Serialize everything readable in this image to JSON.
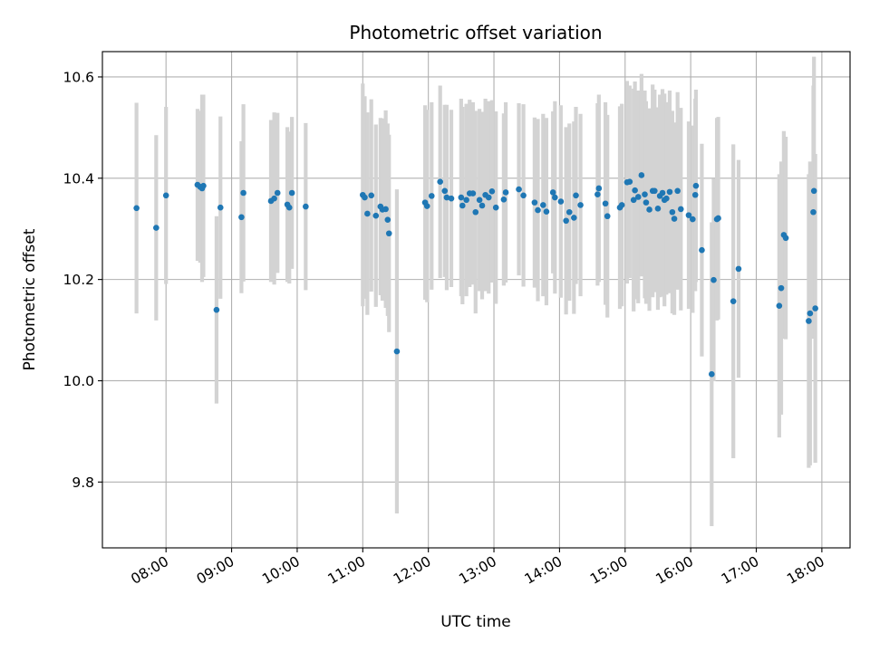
{
  "chart_data": {
    "type": "scatter",
    "title": "Photometric offset variation",
    "xlabel": "UTC time",
    "ylabel": "Photometric offset",
    "x_tick_labels": [
      "08:00",
      "09:00",
      "10:00",
      "11:00",
      "12:00",
      "13:00",
      "14:00",
      "15:00",
      "16:00",
      "17:00",
      "18:00"
    ],
    "x_tick_hours": [
      8,
      9,
      10,
      11,
      12,
      13,
      14,
      15,
      16,
      17,
      18
    ],
    "y_ticks": [
      9.8,
      10.0,
      10.2,
      10.4,
      10.6
    ],
    "y_tick_labels": [
      "9.8",
      "10.0",
      "10.2",
      "10.4",
      "10.6"
    ],
    "xlim_hours": [
      7.03,
      18.43
    ],
    "ylim": [
      9.67,
      10.65
    ],
    "grid": true,
    "colors": {
      "point": "#1f77b4",
      "errorbar": "#d3d3d3",
      "grid": "#b0b0b0"
    },
    "series": [
      {
        "points": [
          [
            7.55,
            10.341,
            0.208
          ],
          [
            7.85,
            10.302,
            0.183
          ],
          [
            8.0,
            10.366,
            0.175
          ],
          [
            8.48,
            10.387,
            0.15
          ],
          [
            8.52,
            10.383,
            0.15
          ],
          [
            8.55,
            10.38,
            0.185
          ],
          [
            8.57,
            10.385,
            0.18
          ],
          [
            8.77,
            10.14,
            0.185
          ],
          [
            8.83,
            10.342,
            0.18
          ],
          [
            9.15,
            10.323,
            0.15
          ],
          [
            9.18,
            10.371,
            0.175
          ],
          [
            9.6,
            10.355,
            0.16
          ],
          [
            9.65,
            10.36,
            0.17
          ],
          [
            9.7,
            10.371,
            0.158
          ],
          [
            9.85,
            10.348,
            0.153
          ],
          [
            9.88,
            10.342,
            0.15
          ],
          [
            9.92,
            10.371,
            0.15
          ],
          [
            10.13,
            10.344,
            0.165
          ],
          [
            11.0,
            10.367,
            0.22
          ],
          [
            11.03,
            10.362,
            0.2
          ],
          [
            11.07,
            10.33,
            0.2
          ],
          [
            11.13,
            10.366,
            0.19
          ],
          [
            11.2,
            10.326,
            0.18
          ],
          [
            11.27,
            10.344,
            0.175
          ],
          [
            11.3,
            10.338,
            0.18
          ],
          [
            11.35,
            10.339,
            0.195
          ],
          [
            11.38,
            10.318,
            0.19
          ],
          [
            11.4,
            10.291,
            0.195
          ],
          [
            11.52,
            10.058,
            0.32
          ],
          [
            11.95,
            10.352,
            0.192
          ],
          [
            11.98,
            10.345,
            0.19
          ],
          [
            12.05,
            10.365,
            0.185
          ],
          [
            12.18,
            10.393,
            0.19
          ],
          [
            12.25,
            10.375,
            0.17
          ],
          [
            12.28,
            10.362,
            0.183
          ],
          [
            12.35,
            10.36,
            0.175
          ],
          [
            12.5,
            10.362,
            0.195
          ],
          [
            12.52,
            10.346,
            0.195
          ],
          [
            12.58,
            10.357,
            0.19
          ],
          [
            12.63,
            10.37,
            0.185
          ],
          [
            12.68,
            10.37,
            0.18
          ],
          [
            12.72,
            10.333,
            0.2
          ],
          [
            12.78,
            10.357,
            0.18
          ],
          [
            12.82,
            10.346,
            0.185
          ],
          [
            12.87,
            10.367,
            0.19
          ],
          [
            12.92,
            10.362,
            0.19
          ],
          [
            12.97,
            10.374,
            0.18
          ],
          [
            13.03,
            10.342,
            0.19
          ],
          [
            13.15,
            10.358,
            0.17
          ],
          [
            13.18,
            10.372,
            0.178
          ],
          [
            13.38,
            10.378,
            0.17
          ],
          [
            13.45,
            10.366,
            0.18
          ],
          [
            13.62,
            10.352,
            0.168
          ],
          [
            13.67,
            10.337,
            0.18
          ],
          [
            13.75,
            10.347,
            0.18
          ],
          [
            13.8,
            10.334,
            0.185
          ],
          [
            13.9,
            10.372,
            0.16
          ],
          [
            13.93,
            10.362,
            0.19
          ],
          [
            14.02,
            10.354,
            0.19
          ],
          [
            14.1,
            10.316,
            0.185
          ],
          [
            14.15,
            10.333,
            0.175
          ],
          [
            14.22,
            10.322,
            0.19
          ],
          [
            14.25,
            10.366,
            0.175
          ],
          [
            14.32,
            10.347,
            0.18
          ],
          [
            14.58,
            10.368,
            0.18
          ],
          [
            14.6,
            10.38,
            0.185
          ],
          [
            14.7,
            10.35,
            0.2
          ],
          [
            14.73,
            10.325,
            0.2
          ],
          [
            14.92,
            10.342,
            0.2
          ],
          [
            14.95,
            10.347,
            0.2
          ],
          [
            15.03,
            10.392,
            0.2
          ],
          [
            15.07,
            10.393,
            0.19
          ],
          [
            15.13,
            10.357,
            0.22
          ],
          [
            15.15,
            10.376,
            0.215
          ],
          [
            15.2,
            10.363,
            0.21
          ],
          [
            15.25,
            10.406,
            0.2
          ],
          [
            15.3,
            10.368,
            0.205
          ],
          [
            15.32,
            10.352,
            0.2
          ],
          [
            15.37,
            10.338,
            0.2
          ],
          [
            15.42,
            10.375,
            0.21
          ],
          [
            15.45,
            10.375,
            0.2
          ],
          [
            15.5,
            10.34,
            0.2
          ],
          [
            15.53,
            10.365,
            0.2
          ],
          [
            15.57,
            10.371,
            0.205
          ],
          [
            15.6,
            10.357,
            0.21
          ],
          [
            15.63,
            10.36,
            0.19
          ],
          [
            15.68,
            10.373,
            0.2
          ],
          [
            15.72,
            10.333,
            0.2
          ],
          [
            15.75,
            10.32,
            0.19
          ],
          [
            15.8,
            10.375,
            0.195
          ],
          [
            15.85,
            10.339,
            0.2
          ],
          [
            15.97,
            10.327,
            0.185
          ],
          [
            16.03,
            10.319,
            0.185
          ],
          [
            16.07,
            10.367,
            0.19
          ],
          [
            16.08,
            10.385,
            0.19
          ],
          [
            16.17,
            10.258,
            0.21
          ],
          [
            16.32,
            10.013,
            0.3
          ],
          [
            16.35,
            10.199,
            0.2
          ],
          [
            16.4,
            10.319,
            0.2
          ],
          [
            16.42,
            10.321,
            0.2
          ],
          [
            16.65,
            10.157,
            0.31
          ],
          [
            16.73,
            10.221,
            0.215
          ],
          [
            17.35,
            10.148,
            0.26
          ],
          [
            17.38,
            10.183,
            0.25
          ],
          [
            17.42,
            10.288,
            0.205
          ],
          [
            17.45,
            10.282,
            0.2
          ],
          [
            17.8,
            10.118,
            0.29
          ],
          [
            17.82,
            10.133,
            0.3
          ],
          [
            17.87,
            10.333,
            0.25
          ],
          [
            17.88,
            10.375,
            0.265
          ],
          [
            17.9,
            10.143,
            0.305
          ]
        ]
      }
    ]
  }
}
